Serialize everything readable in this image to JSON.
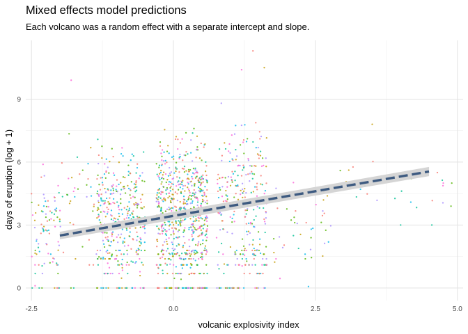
{
  "chart_data": {
    "type": "scatter",
    "title": "Mixed effects model predictions",
    "subtitle": "Each volcano was a random effect with a separate intercept and slope.",
    "xlabel": "volcanic explosivity index",
    "ylabel": "days of eruption (log + 1)",
    "xlim": [
      -2.6,
      5.1
    ],
    "ylim": [
      -0.6,
      11.8
    ],
    "x_ticks": [
      -2.5,
      0.0,
      2.5,
      5.0
    ],
    "x_tick_labels": [
      "-2.5",
      "0.0",
      "2.5",
      "5.0"
    ],
    "y_ticks": [
      0,
      3,
      6,
      9
    ],
    "y_tick_labels": [
      "0",
      "3",
      "6",
      "9"
    ],
    "grid": true,
    "legend": "none",
    "fit_line": {
      "style": "dashed",
      "color": "#3d5a80",
      "band_color": "#d3d3d3",
      "x": [
        -2.0,
        4.5
      ],
      "y": [
        2.5,
        5.55
      ],
      "band_halfwidth": [
        0.1,
        0.22
      ]
    },
    "point_colors": [
      "#f8766d",
      "#c49a00",
      "#53b400",
      "#00c094",
      "#00b6eb",
      "#a58aff",
      "#fb61d7"
    ],
    "point_clusters": [
      {
        "x_range": [
          -2.5,
          -2.0
        ],
        "y_range": [
          0.0,
          7.5
        ],
        "count": 90
      },
      {
        "x_range": [
          -2.0,
          -1.3
        ],
        "y_range": [
          0.0,
          9.8
        ],
        "count": 45
      },
      {
        "x_range": [
          -1.35,
          -0.5
        ],
        "y_range": [
          0.0,
          8.5
        ],
        "count": 380
      },
      {
        "x_range": [
          -0.3,
          0.6
        ],
        "y_range": [
          0.0,
          9.0
        ],
        "count": 750
      },
      {
        "x_range": [
          0.75,
          1.65
        ],
        "y_range": [
          0.0,
          10.3
        ],
        "count": 300
      },
      {
        "x_range": [
          1.7,
          2.8
        ],
        "y_range": [
          0.0,
          7.0
        ],
        "count": 45
      },
      {
        "x_range": [
          2.8,
          5.0
        ],
        "y_range": [
          3.0,
          7.8
        ],
        "count": 25
      }
    ],
    "outlier_points": [
      {
        "x": 1.4,
        "y": 11.3
      },
      {
        "x": 1.2,
        "y": 10.4
      },
      {
        "x": 1.6,
        "y": 10.5
      },
      {
        "x": -1.8,
        "y": 9.9
      },
      {
        "x": 4.75,
        "y": 5.0
      },
      {
        "x": 4.9,
        "y": 5.0
      },
      {
        "x": 4.0,
        "y": 3.0
      },
      {
        "x": 4.55,
        "y": 3.0
      },
      {
        "x": 3.5,
        "y": 7.8
      }
    ]
  }
}
